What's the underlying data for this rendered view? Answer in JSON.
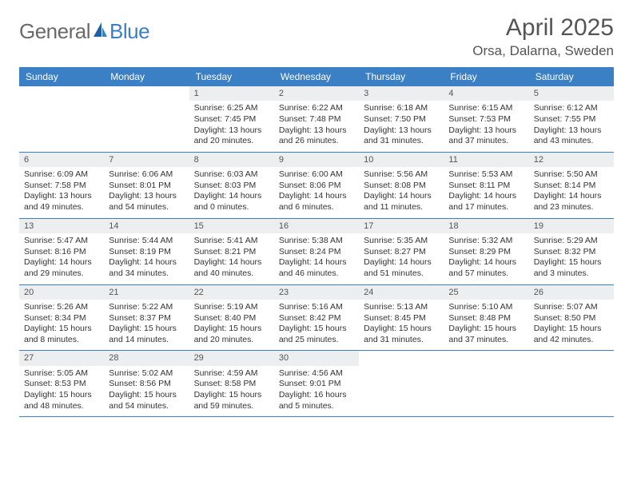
{
  "logo": {
    "text1": "General",
    "text2": "Blue"
  },
  "title": "April 2025",
  "location": "Orsa, Dalarna, Sweden",
  "colors": {
    "header_bg": "#3b7fc4",
    "header_text": "#ffffff",
    "daynum_bg": "#eceef0",
    "border": "#3b7fc4",
    "text": "#333333",
    "logo_gray": "#6a6a6a",
    "logo_blue": "#3b7fc4"
  },
  "daynames": [
    "Sunday",
    "Monday",
    "Tuesday",
    "Wednesday",
    "Thursday",
    "Friday",
    "Saturday"
  ],
  "weeks": [
    [
      null,
      null,
      {
        "num": "1",
        "sunrise": "Sunrise: 6:25 AM",
        "sunset": "Sunset: 7:45 PM",
        "daylight": "Daylight: 13 hours and 20 minutes."
      },
      {
        "num": "2",
        "sunrise": "Sunrise: 6:22 AM",
        "sunset": "Sunset: 7:48 PM",
        "daylight": "Daylight: 13 hours and 26 minutes."
      },
      {
        "num": "3",
        "sunrise": "Sunrise: 6:18 AM",
        "sunset": "Sunset: 7:50 PM",
        "daylight": "Daylight: 13 hours and 31 minutes."
      },
      {
        "num": "4",
        "sunrise": "Sunrise: 6:15 AM",
        "sunset": "Sunset: 7:53 PM",
        "daylight": "Daylight: 13 hours and 37 minutes."
      },
      {
        "num": "5",
        "sunrise": "Sunrise: 6:12 AM",
        "sunset": "Sunset: 7:55 PM",
        "daylight": "Daylight: 13 hours and 43 minutes."
      }
    ],
    [
      {
        "num": "6",
        "sunrise": "Sunrise: 6:09 AM",
        "sunset": "Sunset: 7:58 PM",
        "daylight": "Daylight: 13 hours and 49 minutes."
      },
      {
        "num": "7",
        "sunrise": "Sunrise: 6:06 AM",
        "sunset": "Sunset: 8:01 PM",
        "daylight": "Daylight: 13 hours and 54 minutes."
      },
      {
        "num": "8",
        "sunrise": "Sunrise: 6:03 AM",
        "sunset": "Sunset: 8:03 PM",
        "daylight": "Daylight: 14 hours and 0 minutes."
      },
      {
        "num": "9",
        "sunrise": "Sunrise: 6:00 AM",
        "sunset": "Sunset: 8:06 PM",
        "daylight": "Daylight: 14 hours and 6 minutes."
      },
      {
        "num": "10",
        "sunrise": "Sunrise: 5:56 AM",
        "sunset": "Sunset: 8:08 PM",
        "daylight": "Daylight: 14 hours and 11 minutes."
      },
      {
        "num": "11",
        "sunrise": "Sunrise: 5:53 AM",
        "sunset": "Sunset: 8:11 PM",
        "daylight": "Daylight: 14 hours and 17 minutes."
      },
      {
        "num": "12",
        "sunrise": "Sunrise: 5:50 AM",
        "sunset": "Sunset: 8:14 PM",
        "daylight": "Daylight: 14 hours and 23 minutes."
      }
    ],
    [
      {
        "num": "13",
        "sunrise": "Sunrise: 5:47 AM",
        "sunset": "Sunset: 8:16 PM",
        "daylight": "Daylight: 14 hours and 29 minutes."
      },
      {
        "num": "14",
        "sunrise": "Sunrise: 5:44 AM",
        "sunset": "Sunset: 8:19 PM",
        "daylight": "Daylight: 14 hours and 34 minutes."
      },
      {
        "num": "15",
        "sunrise": "Sunrise: 5:41 AM",
        "sunset": "Sunset: 8:21 PM",
        "daylight": "Daylight: 14 hours and 40 minutes."
      },
      {
        "num": "16",
        "sunrise": "Sunrise: 5:38 AM",
        "sunset": "Sunset: 8:24 PM",
        "daylight": "Daylight: 14 hours and 46 minutes."
      },
      {
        "num": "17",
        "sunrise": "Sunrise: 5:35 AM",
        "sunset": "Sunset: 8:27 PM",
        "daylight": "Daylight: 14 hours and 51 minutes."
      },
      {
        "num": "18",
        "sunrise": "Sunrise: 5:32 AM",
        "sunset": "Sunset: 8:29 PM",
        "daylight": "Daylight: 14 hours and 57 minutes."
      },
      {
        "num": "19",
        "sunrise": "Sunrise: 5:29 AM",
        "sunset": "Sunset: 8:32 PM",
        "daylight": "Daylight: 15 hours and 3 minutes."
      }
    ],
    [
      {
        "num": "20",
        "sunrise": "Sunrise: 5:26 AM",
        "sunset": "Sunset: 8:34 PM",
        "daylight": "Daylight: 15 hours and 8 minutes."
      },
      {
        "num": "21",
        "sunrise": "Sunrise: 5:22 AM",
        "sunset": "Sunset: 8:37 PM",
        "daylight": "Daylight: 15 hours and 14 minutes."
      },
      {
        "num": "22",
        "sunrise": "Sunrise: 5:19 AM",
        "sunset": "Sunset: 8:40 PM",
        "daylight": "Daylight: 15 hours and 20 minutes."
      },
      {
        "num": "23",
        "sunrise": "Sunrise: 5:16 AM",
        "sunset": "Sunset: 8:42 PM",
        "daylight": "Daylight: 15 hours and 25 minutes."
      },
      {
        "num": "24",
        "sunrise": "Sunrise: 5:13 AM",
        "sunset": "Sunset: 8:45 PM",
        "daylight": "Daylight: 15 hours and 31 minutes."
      },
      {
        "num": "25",
        "sunrise": "Sunrise: 5:10 AM",
        "sunset": "Sunset: 8:48 PM",
        "daylight": "Daylight: 15 hours and 37 minutes."
      },
      {
        "num": "26",
        "sunrise": "Sunrise: 5:07 AM",
        "sunset": "Sunset: 8:50 PM",
        "daylight": "Daylight: 15 hours and 42 minutes."
      }
    ],
    [
      {
        "num": "27",
        "sunrise": "Sunrise: 5:05 AM",
        "sunset": "Sunset: 8:53 PM",
        "daylight": "Daylight: 15 hours and 48 minutes."
      },
      {
        "num": "28",
        "sunrise": "Sunrise: 5:02 AM",
        "sunset": "Sunset: 8:56 PM",
        "daylight": "Daylight: 15 hours and 54 minutes."
      },
      {
        "num": "29",
        "sunrise": "Sunrise: 4:59 AM",
        "sunset": "Sunset: 8:58 PM",
        "daylight": "Daylight: 15 hours and 59 minutes."
      },
      {
        "num": "30",
        "sunrise": "Sunrise: 4:56 AM",
        "sunset": "Sunset: 9:01 PM",
        "daylight": "Daylight: 16 hours and 5 minutes."
      },
      null,
      null,
      null
    ]
  ]
}
